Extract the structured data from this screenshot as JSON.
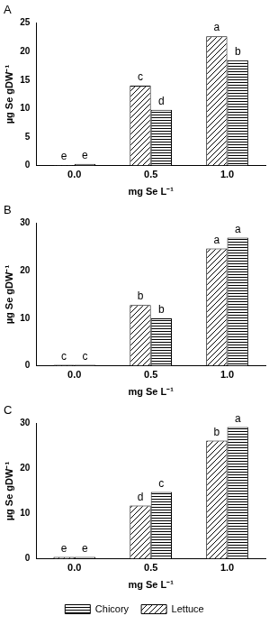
{
  "chart_data": [
    {
      "type": "bar",
      "title": "A",
      "x_label": "mg Se L⁻¹",
      "y_label": "µg Se gDW⁻¹",
      "categories": [
        "0.0",
        "0.5",
        "1.0"
      ],
      "series": [
        {
          "name": "Lettuce",
          "color": "#000000",
          "line_style": "diagonal",
          "values": [
            0.1,
            14.0,
            22.7
          ],
          "letters": [
            "e",
            "c",
            "a"
          ]
        },
        {
          "name": "Chicory",
          "color": "#000000",
          "line_style": "horizontal",
          "values": [
            0.3,
            9.8,
            18.5
          ],
          "letters": [
            "e",
            "d",
            "b"
          ]
        }
      ],
      "ylim": [
        0,
        25
      ],
      "yticks": [
        0,
        5,
        10,
        15,
        20,
        25
      ],
      "grid": false
    },
    {
      "type": "bar",
      "title": "B",
      "x_label": "mg Se L⁻¹",
      "y_label": "µg Se gDW⁻¹",
      "categories": [
        "0.0",
        "0.5",
        "1.0"
      ],
      "series": [
        {
          "name": "Lettuce",
          "color": "#000000",
          "line_style": "diagonal",
          "values": [
            0.2,
            12.8,
            24.7
          ],
          "letters": [
            "c",
            "b",
            "a"
          ]
        },
        {
          "name": "Chicory",
          "color": "#000000",
          "line_style": "horizontal",
          "values": [
            0.2,
            10.0,
            27.0
          ],
          "letters": [
            "c",
            "b",
            "a"
          ]
        }
      ],
      "ylim": [
        0,
        30
      ],
      "yticks": [
        0,
        10,
        20,
        30
      ],
      "grid": false
    },
    {
      "type": "bar",
      "title": "C",
      "x_label": "mg Se L⁻¹",
      "y_label": "µg Se gDW⁻¹",
      "categories": [
        "0.0",
        "0.5",
        "1.0"
      ],
      "series": [
        {
          "name": "Lettuce",
          "color": "#000000",
          "line_style": "diagonal",
          "values": [
            0.4,
            11.8,
            26.2
          ],
          "letters": [
            "e",
            "d",
            "b"
          ]
        },
        {
          "name": "Chicory",
          "color": "#000000",
          "line_style": "horizontal",
          "values": [
            0.4,
            14.8,
            29.2
          ],
          "letters": [
            "e",
            "c",
            "a"
          ]
        }
      ],
      "ylim": [
        0,
        30
      ],
      "yticks": [
        0,
        10,
        20,
        30
      ],
      "grid": false,
      "legend": "bottom"
    }
  ]
}
